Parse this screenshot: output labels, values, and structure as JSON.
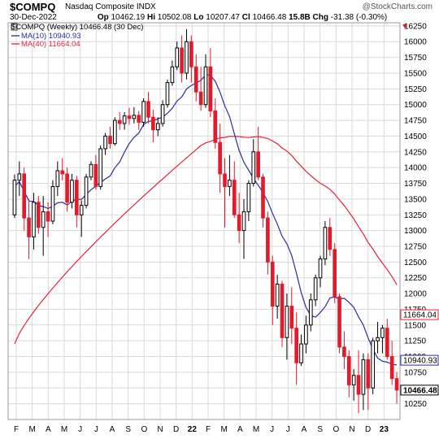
{
  "header": {
    "symbol": "$COMPQ",
    "exchange": "Nasdaq Composite INDX",
    "watermark": "@StockCharts.com",
    "date": "30-Dec-2022",
    "open_label": "Op",
    "open": "10462.19",
    "high_label": "Hi",
    "high": "10502.08",
    "low_label": "Lo",
    "low": "10207.47",
    "close_label": "Cl",
    "close": "10466.48",
    "volume": "15.8B",
    "change_label": "Chg",
    "change": "-31.38 (-0.30%)"
  },
  "legend": {
    "price": "$COMPQ (Weekly) 10466.48 (30 Dec)",
    "ma10": "MA(10) 10940.93",
    "ma40": "MA(40) 11664.04"
  },
  "colors": {
    "up": "#000000",
    "down": "#e41a2b",
    "ma10": "#2c2ca8",
    "ma40": "#e8213a",
    "grid": "#d9d9d9"
  },
  "chart_data": {
    "type": "candlestick",
    "title": "$COMPQ (Weekly)",
    "ylim": [
      10000,
      16300
    ],
    "yticks": [
      10250,
      10500,
      10750,
      11000,
      11250,
      11500,
      11750,
      12000,
      12250,
      12500,
      12750,
      13000,
      13250,
      13500,
      13750,
      14000,
      14250,
      14500,
      14750,
      15000,
      15250,
      15500,
      15750,
      16000,
      16250
    ],
    "x_labels": [
      "F",
      "M",
      "A",
      "M",
      "J",
      "J",
      "A",
      "S",
      "O",
      "N",
      "D",
      "22",
      "F",
      "M",
      "A",
      "M",
      "J",
      "J",
      "A",
      "S",
      "O",
      "N",
      "D",
      "23"
    ],
    "value_tags": [
      {
        "label": "11664.04",
        "value": 11664.04,
        "series": "ma40"
      },
      {
        "label": "10940.93",
        "value": 10940.93,
        "series": "ma10"
      },
      {
        "label": "10466.48",
        "value": 10466.48,
        "series": "price"
      }
    ],
    "candles": [
      [
        13250,
        13890,
        13200,
        13800
      ],
      [
        13800,
        14100,
        13550,
        13900
      ],
      [
        13900,
        14000,
        13000,
        13200
      ],
      [
        13200,
        13500,
        12550,
        12900
      ],
      [
        12900,
        13600,
        12700,
        13450
      ],
      [
        13450,
        13550,
        12950,
        13050
      ],
      [
        13050,
        13550,
        12600,
        13300
      ],
      [
        13300,
        13450,
        12900,
        13150
      ],
      [
        13150,
        13800,
        13100,
        13700
      ],
      [
        13700,
        14100,
        13550,
        13950
      ],
      [
        13950,
        14150,
        13800,
        13900
      ],
      [
        13900,
        14000,
        13300,
        13450
      ],
      [
        13450,
        13900,
        13350,
        13800
      ],
      [
        13800,
        13870,
        13050,
        13250
      ],
      [
        13250,
        13480,
        12900,
        13400
      ],
      [
        13400,
        13900,
        13350,
        13850
      ],
      [
        13850,
        14100,
        13800,
        14050
      ],
      [
        14050,
        14200,
        13650,
        13700
      ],
      [
        13700,
        14350,
        13650,
        14300
      ],
      [
        14300,
        14550,
        14200,
        14500
      ],
      [
        14500,
        14650,
        14300,
        14380
      ],
      [
        14380,
        14800,
        14350,
        14750
      ],
      [
        14750,
        14880,
        14600,
        14700
      ],
      [
        14700,
        14880,
        14600,
        14820
      ],
      [
        14820,
        14950,
        14680,
        14780
      ],
      [
        14780,
        14960,
        14700,
        14830
      ],
      [
        14830,
        14900,
        14600,
        14720
      ],
      [
        14720,
        15100,
        14650,
        15050
      ],
      [
        15050,
        15200,
        14700,
        14800
      ],
      [
        14800,
        14920,
        14400,
        14600
      ],
      [
        14600,
        14800,
        14500,
        14700
      ],
      [
        14700,
        15070,
        14650,
        15000
      ],
      [
        15000,
        15400,
        14950,
        15350
      ],
      [
        15350,
        15700,
        15300,
        15600
      ],
      [
        15600,
        16000,
        15550,
        15900
      ],
      [
        15900,
        16100,
        15350,
        15500
      ],
      [
        15500,
        16200,
        15400,
        16000
      ],
      [
        16000,
        16100,
        15350,
        15600
      ],
      [
        15600,
        15800,
        15050,
        15200
      ],
      [
        15200,
        15600,
        14900,
        15000
      ],
      [
        15000,
        15800,
        14950,
        15600
      ],
      [
        15600,
        15900,
        14800,
        14900
      ],
      [
        14900,
        15100,
        14300,
        14400
      ],
      [
        14400,
        14700,
        13600,
        13900
      ],
      [
        13900,
        14150,
        13050,
        13700
      ],
      [
        13700,
        14200,
        13550,
        13800
      ],
      [
        13800,
        14100,
        13200,
        13250
      ],
      [
        13250,
        13600,
        12800,
        13000
      ],
      [
        13000,
        13500,
        12550,
        13300
      ],
      [
        13300,
        13800,
        13150,
        13750
      ],
      [
        13750,
        14450,
        13700,
        14250
      ],
      [
        14250,
        14650,
        13800,
        13850
      ],
      [
        13850,
        13900,
        13050,
        13200
      ],
      [
        13200,
        13300,
        12300,
        12500
      ],
      [
        12500,
        12600,
        11500,
        11800
      ],
      [
        11800,
        12300,
        11600,
        12150
      ],
      [
        12150,
        12200,
        11150,
        11300
      ],
      [
        11300,
        12000,
        10950,
        11800
      ],
      [
        11800,
        12100,
        11200,
        11450
      ],
      [
        11450,
        11700,
        10550,
        10900
      ],
      [
        10900,
        11350,
        10850,
        11200
      ],
      [
        11200,
        11650,
        11050,
        11500
      ],
      [
        11500,
        12000,
        11400,
        11900
      ],
      [
        11900,
        12300,
        11800,
        12250
      ],
      [
        12250,
        12600,
        12100,
        12550
      ],
      [
        12550,
        13150,
        12450,
        13050
      ],
      [
        13050,
        13200,
        12600,
        12700
      ],
      [
        12700,
        12800,
        11850,
        11950
      ],
      [
        11950,
        12000,
        11050,
        11150
      ],
      [
        11150,
        11400,
        10800,
        11000
      ],
      [
        11000,
        11100,
        10350,
        10550
      ],
      [
        10550,
        10800,
        10300,
        10700
      ],
      [
        10700,
        11100,
        10100,
        10400
      ],
      [
        10400,
        11050,
        10150,
        10950
      ],
      [
        10950,
        11050,
        10150,
        10500
      ],
      [
        10500,
        11300,
        10400,
        11250
      ],
      [
        11250,
        11550,
        11050,
        11300
      ],
      [
        11300,
        11500,
        11050,
        11450
      ],
      [
        11450,
        11600,
        10950,
        11000
      ],
      [
        11000,
        11250,
        10550,
        10650
      ],
      [
        10650,
        10750,
        10250,
        10466
      ]
    ],
    "series": [
      {
        "name": "MA(10)",
        "key": "ma10"
      },
      {
        "name": "MA(40)",
        "key": "ma40"
      }
    ]
  }
}
